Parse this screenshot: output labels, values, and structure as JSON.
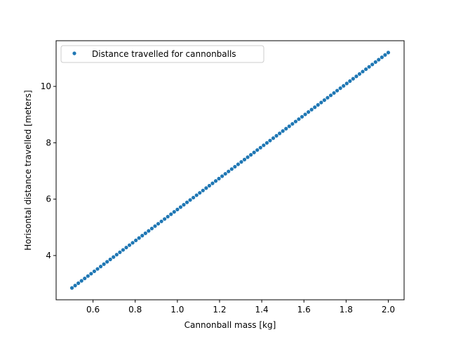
{
  "chart_data": {
    "type": "scatter",
    "title": "",
    "xlabel": "Cannonball mass [kg]",
    "ylabel": "Horisontal distance travelled [meters]",
    "xlim": [
      0.425,
      2.075
    ],
    "ylim": [
      2.43,
      11.62
    ],
    "xticks": [
      0.6,
      0.8,
      1.0,
      1.2,
      1.4,
      1.6,
      1.8,
      2.0
    ],
    "xtick_labels": [
      "0.6",
      "0.8",
      "1.0",
      "1.2",
      "1.4",
      "1.6",
      "1.8",
      "2.0"
    ],
    "yticks": [
      4,
      6,
      8,
      10
    ],
    "ytick_labels": [
      "4",
      "6",
      "8",
      "10"
    ],
    "grid": false,
    "legend_position": "top-left",
    "series": [
      {
        "name": "Distance travelled for cannonballs",
        "color": "#1f77b4",
        "marker": "point",
        "x_start": 0.5,
        "x_end": 2.0,
        "y_start": 2.85,
        "y_end": 11.2,
        "num_points": 100
      }
    ]
  }
}
